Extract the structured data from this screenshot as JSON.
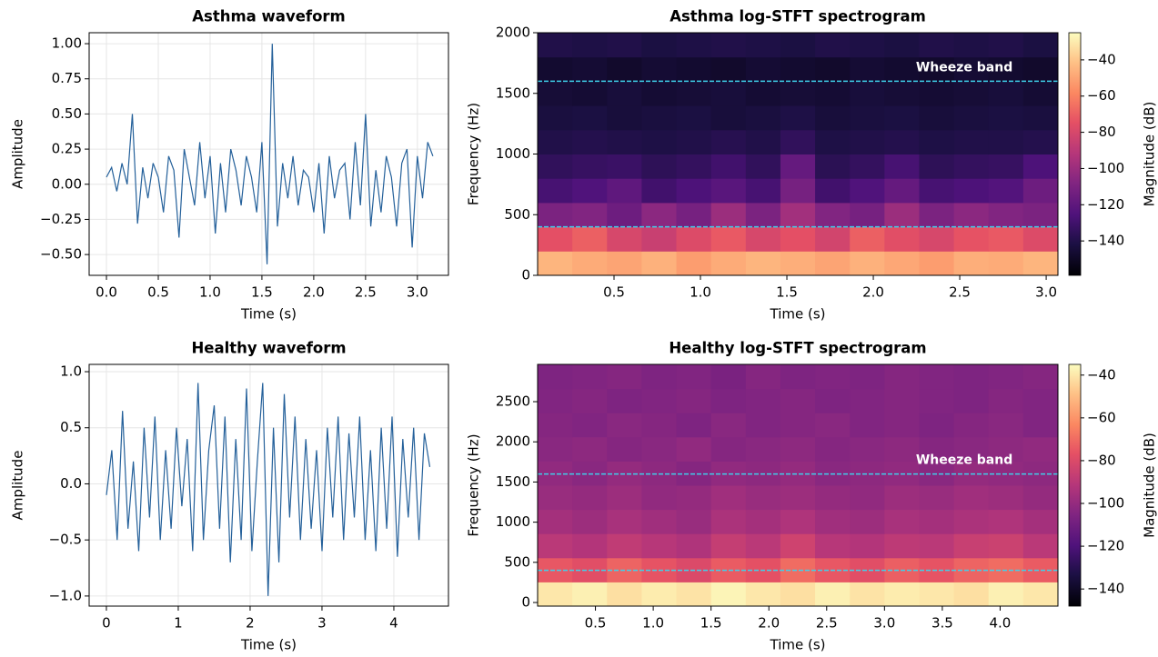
{
  "chart_data": [
    {
      "type": "line",
      "title": "Asthma waveform",
      "xlabel": "Time (s)",
      "ylabel": "Amplitude",
      "color": "#24609a",
      "grid": true,
      "x": [
        0,
        0.05,
        0.1,
        0.15,
        0.2,
        0.25,
        0.3,
        0.35,
        0.4,
        0.45,
        0.5,
        0.55,
        0.6,
        0.65,
        0.7,
        0.75,
        0.8,
        0.85,
        0.9,
        0.95,
        1.0,
        1.05,
        1.1,
        1.15,
        1.2,
        1.25,
        1.3,
        1.35,
        1.4,
        1.45,
        1.5,
        1.55,
        1.6,
        1.65,
        1.7,
        1.75,
        1.8,
        1.85,
        1.9,
        1.95,
        2.0,
        2.05,
        2.1,
        2.15,
        2.2,
        2.25,
        2.3,
        2.35,
        2.4,
        2.45,
        2.5,
        2.55,
        2.6,
        2.65,
        2.7,
        2.75,
        2.8,
        2.85,
        2.9,
        2.95,
        3.0,
        3.05,
        3.1,
        3.15
      ],
      "values": [
        0.05,
        0.12,
        -0.05,
        0.15,
        0.0,
        0.5,
        -0.28,
        0.12,
        -0.1,
        0.15,
        0.05,
        -0.2,
        0.2,
        0.1,
        -0.38,
        0.25,
        0.05,
        -0.15,
        0.3,
        -0.1,
        0.2,
        -0.35,
        0.15,
        -0.2,
        0.25,
        0.1,
        -0.15,
        0.2,
        0.05,
        -0.2,
        0.3,
        -0.57,
        1.0,
        -0.3,
        0.15,
        -0.1,
        0.2,
        -0.15,
        0.1,
        0.05,
        -0.2,
        0.15,
        -0.35,
        0.2,
        -0.1,
        0.1,
        0.15,
        -0.25,
        0.3,
        -0.15,
        0.5,
        -0.3,
        0.1,
        -0.2,
        0.2,
        0.05,
        -0.3,
        0.15,
        0.25,
        -0.45,
        0.2,
        -0.1,
        0.3,
        0.2
      ],
      "xlim": [
        -0.167,
        3.3
      ],
      "ylim": [
        -0.648,
        1.078
      ],
      "xticks": [
        {
          "value": 0,
          "label": "0.0"
        },
        0.5,
        {
          "value": 1,
          "label": "1.0"
        },
        1.5,
        {
          "value": 2,
          "label": "2.0"
        },
        2.5,
        {
          "value": 3,
          "label": "3.0"
        }
      ],
      "yticks": [
        {
          "value": -0.5,
          "label": "−0.50"
        },
        {
          "value": -0.25,
          "label": "−0.25"
        },
        {
          "value": 0,
          "label": "0.00"
        },
        {
          "value": 0.25,
          "label": "0.25"
        },
        {
          "value": 0.5,
          "label": "0.50"
        },
        {
          "value": 0.75,
          "label": "0.75"
        },
        {
          "value": 1,
          "label": "1.00"
        }
      ]
    },
    {
      "type": "heatmap",
      "title": "Asthma log-STFT spectrogram",
      "xlabel": "Time (s)",
      "ylabel": "Frequency (Hz)",
      "cmap": "magma",
      "colorbar_label": "Magnitude (dB)",
      "clim": [
        -159,
        -25
      ],
      "cticks": [
        {
          "value": -140,
          "label": "−140"
        },
        {
          "value": -120,
          "label": "−120"
        },
        {
          "value": -100,
          "label": "−100"
        },
        {
          "value": -80,
          "label": "−80"
        },
        {
          "value": -60,
          "label": "−60"
        },
        {
          "value": -40,
          "label": "−40"
        }
      ],
      "xlim": [
        0.058,
        3.068
      ],
      "ylim": [
        0,
        2000
      ],
      "xticks": [
        0.5,
        {
          "value": 1,
          "label": "1.0"
        },
        1.5,
        {
          "value": 2,
          "label": "2.0"
        },
        2.5,
        {
          "value": 3,
          "label": "3.0"
        }
      ],
      "yticks": [
        0,
        500,
        1000,
        1500,
        2000
      ],
      "hlines": [
        400,
        1600
      ],
      "hline_color": "#3fd0ea",
      "annotation": "Wheeze band",
      "z": [
        [
          -45,
          -48,
          -50,
          -46,
          -52,
          -48,
          -45,
          -47,
          -50,
          -46,
          -49,
          -52,
          -47,
          -48,
          -45
        ],
        [
          -75,
          -70,
          -80,
          -85,
          -78,
          -72,
          -80,
          -75,
          -82,
          -70,
          -76,
          -80,
          -74,
          -72,
          -78
        ],
        [
          -110,
          -108,
          -115,
          -105,
          -112,
          -100,
          -110,
          -98,
          -108,
          -112,
          -100,
          -110,
          -105,
          -108,
          -110
        ],
        [
          -128,
          -125,
          -120,
          -130,
          -126,
          -122,
          -128,
          -112,
          -130,
          -125,
          -118,
          -128,
          -126,
          -124,
          -115
        ],
        [
          -135,
          -133,
          -132,
          -136,
          -134,
          -130,
          -135,
          -118,
          -137,
          -134,
          -128,
          -136,
          -134,
          -133,
          -126
        ],
        [
          -140,
          -139,
          -140,
          -141,
          -140,
          -138,
          -140,
          -135,
          -141,
          -140,
          -139,
          -141,
          -140,
          -140,
          -139
        ],
        [
          -143,
          -142,
          -144,
          -143,
          -142,
          -144,
          -143,
          -141,
          -144,
          -143,
          -142,
          -144,
          -143,
          -142,
          -143
        ],
        [
          -145,
          -146,
          -144,
          -146,
          -145,
          -144,
          -146,
          -145,
          -146,
          -144,
          -145,
          -146,
          -145,
          -144,
          -146
        ],
        [
          -147,
          -146,
          -148,
          -146,
          -147,
          -148,
          -146,
          -147,
          -148,
          -146,
          -147,
          -148,
          -146,
          -147,
          -148
        ],
        [
          -140,
          -141,
          -140,
          -142,
          -141,
          -140,
          -141,
          -142,
          -140,
          -141,
          -142,
          -140,
          -141,
          -140,
          -142
        ]
      ]
    },
    {
      "type": "line",
      "title": "Healthy waveform",
      "xlabel": "Time (s)",
      "ylabel": "Amplitude",
      "color": "#24609a",
      "grid": true,
      "x": [
        0,
        0.075,
        0.15,
        0.225,
        0.3,
        0.375,
        0.45,
        0.525,
        0.6,
        0.675,
        0.75,
        0.825,
        0.9,
        0.975,
        1.05,
        1.125,
        1.2,
        1.275,
        1.35,
        1.425,
        1.5,
        1.575,
        1.65,
        1.725,
        1.8,
        1.875,
        1.95,
        2.025,
        2.1,
        2.175,
        2.25,
        2.325,
        2.4,
        2.475,
        2.55,
        2.625,
        2.7,
        2.775,
        2.85,
        2.925,
        3.0,
        3.075,
        3.15,
        3.225,
        3.3,
        3.375,
        3.45,
        3.525,
        3.6,
        3.675,
        3.75,
        3.825,
        3.9,
        3.975,
        4.05,
        4.125,
        4.2,
        4.275,
        4.35,
        4.425,
        4.5
      ],
      "values": [
        -0.1,
        0.3,
        -0.5,
        0.65,
        -0.4,
        0.2,
        -0.6,
        0.5,
        -0.3,
        0.6,
        -0.5,
        0.3,
        -0.4,
        0.5,
        -0.2,
        0.4,
        -0.6,
        0.9,
        -0.5,
        0.3,
        0.7,
        -0.4,
        0.6,
        -0.7,
        0.4,
        -0.5,
        0.85,
        -0.6,
        0.2,
        0.9,
        -1.0,
        0.5,
        -0.7,
        0.8,
        -0.3,
        0.6,
        -0.5,
        0.4,
        -0.4,
        0.3,
        -0.6,
        0.5,
        -0.3,
        0.6,
        -0.5,
        0.45,
        -0.3,
        0.6,
        -0.5,
        0.3,
        -0.6,
        0.5,
        -0.4,
        0.6,
        -0.65,
        0.4,
        -0.3,
        0.5,
        -0.5,
        0.45,
        0.15
      ],
      "xlim": [
        -0.24,
        4.76
      ],
      "ylim": [
        -1.09,
        1.065
      ],
      "xticks": [
        0,
        1,
        2,
        3,
        4
      ],
      "yticks": [
        {
          "value": -1,
          "label": "−1.0"
        },
        {
          "value": -0.5,
          "label": "−0.5"
        },
        {
          "value": 0,
          "label": "0.0"
        },
        0.5,
        {
          "value": 1,
          "label": "1.0"
        }
      ]
    },
    {
      "type": "heatmap",
      "title": "Healthy log-STFT spectrogram",
      "xlabel": "Time (s)",
      "ylabel": "Frequency (Hz)",
      "cmap": "magma",
      "colorbar_label": "Magnitude (dB)",
      "clim": [
        -148,
        -35
      ],
      "cticks": [
        {
          "value": -140,
          "label": "−140"
        },
        {
          "value": -120,
          "label": "−120"
        },
        {
          "value": -100,
          "label": "−100"
        },
        {
          "value": -80,
          "label": "−80"
        },
        {
          "value": -60,
          "label": "−60"
        },
        {
          "value": -40,
          "label": "−40"
        }
      ],
      "xlim": [
        0,
        4.5
      ],
      "ylim": [
        -45,
        2964
      ],
      "xticks": [
        0.5,
        {
          "value": 1,
          "label": "1.0"
        },
        1.5,
        {
          "value": 2,
          "label": "2.0"
        },
        2.5,
        {
          "value": 3,
          "label": "3.0"
        },
        3.5,
        {
          "value": 4,
          "label": "4.0"
        }
      ],
      "yticks": [
        0,
        500,
        1000,
        1500,
        2000,
        2500
      ],
      "hlines": [
        400,
        1600
      ],
      "hline_color": "#3fd0ea",
      "annotation": "Wheeze band",
      "z": [
        [
          -40,
          -38,
          -42,
          -39,
          -41,
          -37,
          -40,
          -42,
          -38,
          -41,
          -39,
          -40,
          -42,
          -38,
          -40
        ],
        [
          -75,
          -78,
          -72,
          -76,
          -80,
          -74,
          -77,
          -70,
          -75,
          -78,
          -73,
          -76,
          -72,
          -70,
          -74
        ],
        [
          -90,
          -92,
          -88,
          -91,
          -93,
          -87,
          -90,
          -84,
          -91,
          -92,
          -89,
          -90,
          -86,
          -85,
          -90
        ],
        [
          -96,
          -98,
          -95,
          -97,
          -99,
          -94,
          -96,
          -93,
          -97,
          -98,
          -95,
          -96,
          -94,
          -93,
          -96
        ],
        [
          -99,
          -100,
          -98,
          -101,
          -100,
          -97,
          -99,
          -98,
          -100,
          -101,
          -98,
          -99,
          -97,
          -98,
          -100
        ],
        [
          -101,
          -103,
          -100,
          -102,
          -104,
          -101,
          -102,
          -100,
          -103,
          -102,
          -101,
          -103,
          -100,
          -101,
          -102
        ],
        [
          -103,
          -102,
          -104,
          -103,
          -101,
          -104,
          -103,
          -102,
          -104,
          -103,
          -102,
          -104,
          -103,
          -102,
          -101
        ],
        [
          -104,
          -105,
          -103,
          -104,
          -106,
          -103,
          -105,
          -104,
          -103,
          -105,
          -104,
          -106,
          -104,
          -103,
          -105
        ],
        [
          -105,
          -104,
          -106,
          -105,
          -104,
          -106,
          -105,
          -104,
          -106,
          -105,
          -104,
          -105,
          -106,
          -104,
          -105
        ],
        [
          -106,
          -105,
          -104,
          -106,
          -105,
          -107,
          -104,
          -106,
          -105,
          -106,
          -104,
          -105,
          -106,
          -105,
          -104
        ]
      ]
    }
  ]
}
